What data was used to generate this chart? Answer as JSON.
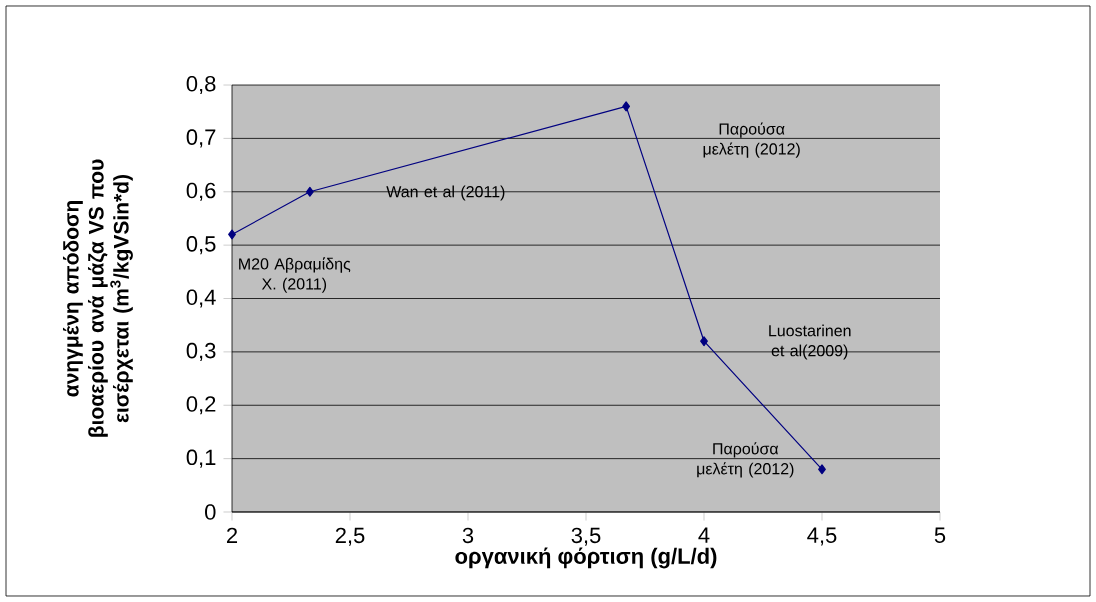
{
  "chart_data": {
    "type": "line",
    "xlabel": "οργανική φόρτιση (g/L/d)",
    "ylabel": "ανηγμένη απόδοση βιοαερίου ανά μάζα VS που εισέρχεται (m$^{3}$/kgVSin*d)",
    "x": [
      2,
      2.33,
      3.67,
      4,
      4.5
    ],
    "series": [
      {
        "color": "#000080",
        "values": [
          0.52,
          0.6,
          0.76,
          0.32,
          0.08
        ]
      }
    ],
    "marker": "diamond",
    "line_style": "solid",
    "grid": "y",
    "xlim": [
      2,
      5
    ],
    "ylim": [
      0,
      0.8
    ],
    "xticks": [
      2,
      {
        "value": 2.5,
        "label": "2,5"
      },
      3,
      {
        "value": 3.5,
        "label": "3,5"
      },
      4,
      {
        "value": 4.5,
        "label": "4,5"
      },
      5
    ],
    "yticks": [
      0,
      {
        "value": 0.1,
        "label": "0,1"
      },
      {
        "value": 0.2,
        "label": "0,2"
      },
      {
        "value": 0.3,
        "label": "0,3"
      },
      {
        "value": 0.4,
        "label": "0,4"
      },
      {
        "value": 0.5,
        "label": "0,5"
      },
      {
        "value": 0.6,
        "label": "0,6"
      },
      {
        "value": 0.7,
        "label": "0,7"
      },
      {
        "value": 0.8,
        "label": "0,8"
      }
    ],
    "annotations": [
      "M20 Αβραμίδης Χ. (2011)",
      "Wan et al (2011)",
      "Παρούσα μελέτη (2012)",
      "Luostarinen et al(2009)",
      "Παρούσα μελέτη (2012)"
    ]
  }
}
